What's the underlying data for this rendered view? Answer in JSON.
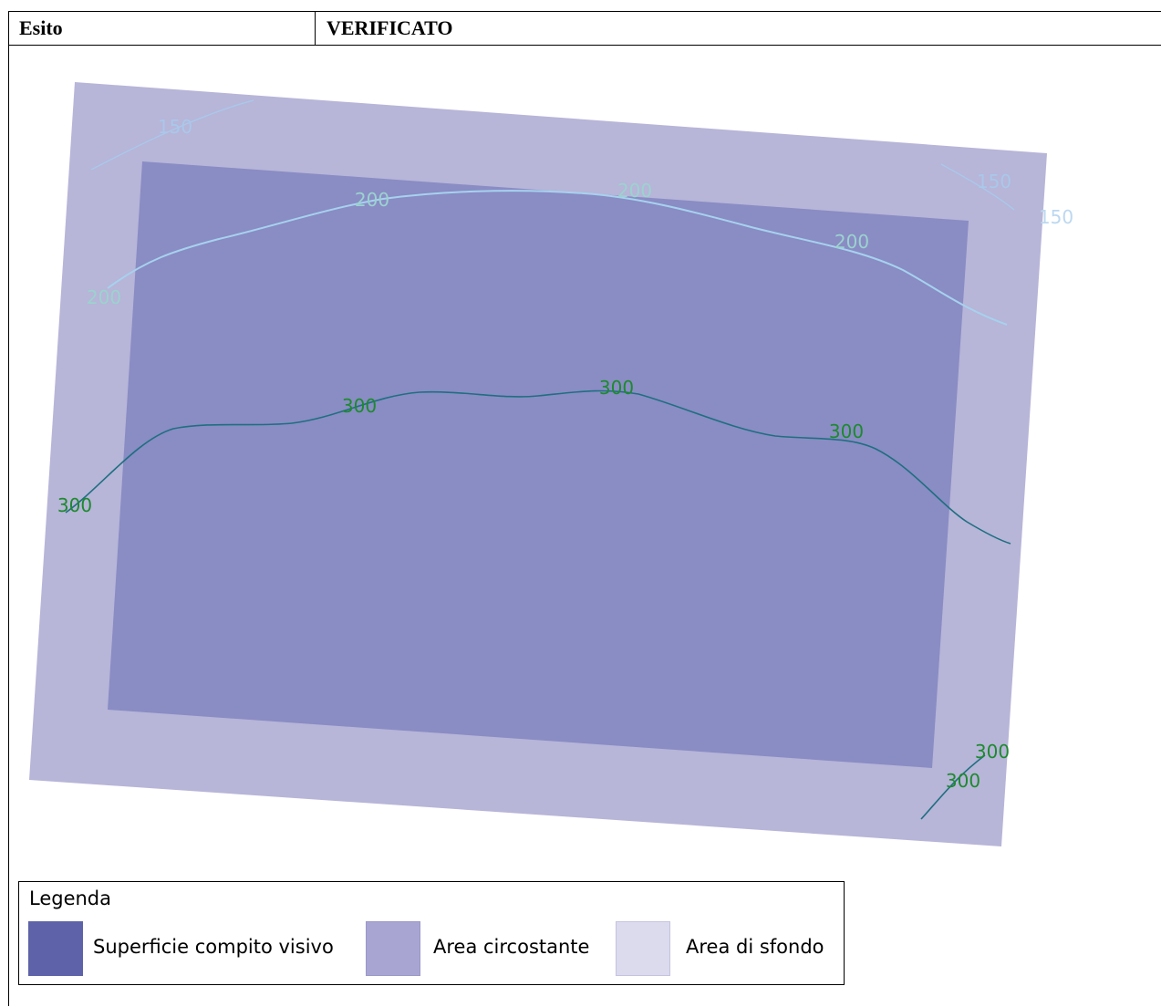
{
  "header": {
    "label": "Esito",
    "value": "VERIFICATO"
  },
  "diagram": {
    "contours": [
      {
        "level": "150",
        "color": "#a9c8ea"
      },
      {
        "level": "200",
        "color": "#a6d2ee"
      },
      {
        "level": "300",
        "color": "#1f6f80"
      }
    ],
    "contour_labels": {
      "c150_a": "150",
      "c150_b": "150",
      "c150_c": "150",
      "c200_a": "200",
      "c200_b": "200",
      "c200_c": "200",
      "c200_d": "200",
      "c300_a": "300",
      "c300_b": "300",
      "c300_c": "300",
      "c300_d": "300",
      "c300_e": "300",
      "c300_f": "300"
    },
    "colors": {
      "task_surface": "#8a8cc4",
      "surrounding_area": "#b7b5d8",
      "background_area": "#dcdbee",
      "label_text_300": "#1d8a2e"
    }
  },
  "legend": {
    "title": "Legenda",
    "items": [
      {
        "label": "Superficie compito visivo",
        "color": "#5e62a8"
      },
      {
        "label": "Area circostante",
        "color": "#a8a5d2"
      },
      {
        "label": "Area di sfondo",
        "color": "#dcdbee"
      }
    ]
  }
}
